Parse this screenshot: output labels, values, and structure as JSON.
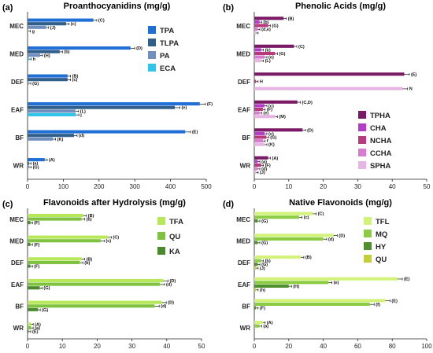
{
  "chart_data": [
    {
      "panel_label": "(a)",
      "title": "Proanthocyanidins (mg/g)",
      "type": "bar",
      "orientation": "horizontal",
      "categories": [
        "MEC",
        "MED",
        "DEF",
        "EAF",
        "BF",
        "WR"
      ],
      "xlim": [
        0,
        500
      ],
      "xticks": [
        "0",
        "100",
        "200",
        "300",
        "400",
        "500"
      ],
      "legend_position": "right",
      "series": [
        {
          "name": "TPA",
          "color": "#1f6fd6",
          "values": [
            184,
            288,
            112,
            482,
            441,
            48
          ],
          "letters": [
            "(C)",
            "(D)",
            "(B)",
            "(F)",
            "(E)",
            "(A)"
          ]
        },
        {
          "name": "TLPA",
          "color": "#2f5f8a",
          "values": [
            108,
            90,
            112,
            412,
            130,
            4
          ],
          "letters": [
            "(c)",
            "(b)",
            "(c)",
            "(e)",
            "(d)",
            "(a)"
          ]
        },
        {
          "name": "PA",
          "color": "#6f8fbf",
          "values": [
            52,
            35,
            3,
            134,
            71,
            4
          ],
          "letters": [
            "(J)",
            "(H)",
            "(G)",
            "(L)",
            "(K)",
            "(G)"
          ]
        },
        {
          "name": "ECA",
          "color": "#2ec5e8",
          "values": [
            2,
            4,
            0,
            135,
            0,
            0
          ],
          "letters": [
            "g",
            "h",
            "",
            "j",
            "",
            ""
          ]
        }
      ]
    },
    {
      "panel_label": "(b)",
      "title": "Phenolic Acids (mg/g)",
      "type": "bar",
      "orientation": "horizontal",
      "categories": [
        "MEC",
        "MED",
        "DEF",
        "EAF",
        "BF",
        "WR"
      ],
      "xlim": [
        0,
        50
      ],
      "xticks": [
        "0",
        "10",
        "20",
        "30",
        "40",
        "50"
      ],
      "legend_position": "lower-right",
      "series": [
        {
          "name": "TPHA",
          "color": "#7a1a66",
          "values": [
            8.5,
            11.5,
            43.5,
            12.5,
            14,
            4
          ],
          "letters": [
            "(B)",
            "(C)",
            "(E)",
            "(C,D)",
            "(D)",
            "(A)"
          ]
        },
        {
          "name": "CHA",
          "color": "#b43cc8",
          "values": [
            1.5,
            2,
            0,
            3,
            3,
            1
          ],
          "letters": [
            "(b)",
            "(b)",
            "",
            "(c)",
            "(c)",
            "(a)"
          ]
        },
        {
          "name": "NCHA",
          "color": "#b83a7c",
          "values": [
            4,
            6,
            0.5,
            2.5,
            3.5,
            2
          ],
          "letters": [
            "(G)",
            "(G)",
            "H",
            "(F)",
            "(G)",
            "(F)"
          ]
        },
        {
          "name": "CCHA",
          "color": "#d97bd0",
          "values": [
            1,
            3,
            0,
            1.5,
            2.5,
            1
          ],
          "letters": [
            "(d,e)",
            "(e)",
            "",
            "(e)",
            "f",
            "(d)"
          ]
        },
        {
          "name": "SPHA",
          "color": "#e8b4e4",
          "values": [
            0.5,
            2,
            43,
            6,
            3,
            0.5
          ],
          "letters": [
            "",
            "(L)",
            "N",
            "(M)",
            "(K)",
            "(J)"
          ]
        }
      ]
    },
    {
      "panel_label": "(c)",
      "title": "Flavonoids after Hydrolysis (mg/g)",
      "type": "bar",
      "orientation": "horizontal",
      "categories": [
        "MEC",
        "MED",
        "DEF",
        "EAF",
        "BF",
        "WR"
      ],
      "xlim": [
        0,
        50
      ],
      "xticks": [
        "0",
        "10",
        "20",
        "30",
        "40",
        "50"
      ],
      "legend_position": "upper-right",
      "series": [
        {
          "name": "TFA",
          "color": "#b7e85a",
          "values": [
            16,
            23,
            15.5,
            39,
            38.5,
            1
          ],
          "letters": [
            "(B)",
            "(C)",
            "(B)",
            "(D)",
            "(D)",
            "(A)"
          ]
        },
        {
          "name": "QU",
          "color": "#7ec23f",
          "values": [
            15.5,
            21,
            15,
            38,
            36.5,
            1
          ],
          "letters": [
            "(b)",
            "(c)",
            "(b)",
            "(d)",
            "(d)",
            "(a)"
          ]
        },
        {
          "name": "KA",
          "color": "#4a8a2a",
          "values": [
            0.8,
            0.8,
            0.8,
            3.5,
            3,
            0.3
          ],
          "letters": [
            "(F)",
            "(F)",
            "(F)",
            "(G)",
            "(G)",
            "(E)"
          ]
        }
      ]
    },
    {
      "panel_label": "(d)",
      "title": "Native Flavonoids (mg/g)",
      "type": "bar",
      "orientation": "horizontal",
      "categories": [
        "MEC",
        "MED",
        "DEF",
        "EAF",
        "BF",
        "WR"
      ],
      "xlim": [
        0,
        100
      ],
      "xticks": [
        "0",
        "20",
        "40",
        "60",
        "80",
        "100"
      ],
      "legend_position": "upper-right",
      "series": [
        {
          "name": "TFL",
          "color": "#d2f27a",
          "values": [
            34,
            46,
            27,
            83,
            76,
            5
          ],
          "letters": [
            "(C)",
            "(D)",
            "(B)",
            "(E)",
            "(E)",
            "(A)"
          ]
        },
        {
          "name": "MQ",
          "color": "#8ccc45",
          "values": [
            26,
            40,
            4,
            43,
            67,
            3
          ],
          "letters": [
            "(c)",
            "(d)",
            "(b)",
            "(e)",
            "(f)",
            "(a)"
          ]
        },
        {
          "name": "HY",
          "color": "#4f8f2c",
          "values": [
            2,
            2,
            2,
            20,
            1,
            0
          ],
          "letters": [
            "(G)",
            "(G)",
            "(G)",
            "(H)",
            "(F)",
            ""
          ]
        },
        {
          "name": "QU",
          "color": "#c2cf3a",
          "values": [
            0,
            0,
            1,
            1,
            0,
            0
          ],
          "letters": [
            "",
            "",
            "(J)",
            "(h)",
            "",
            ""
          ]
        }
      ]
    }
  ]
}
